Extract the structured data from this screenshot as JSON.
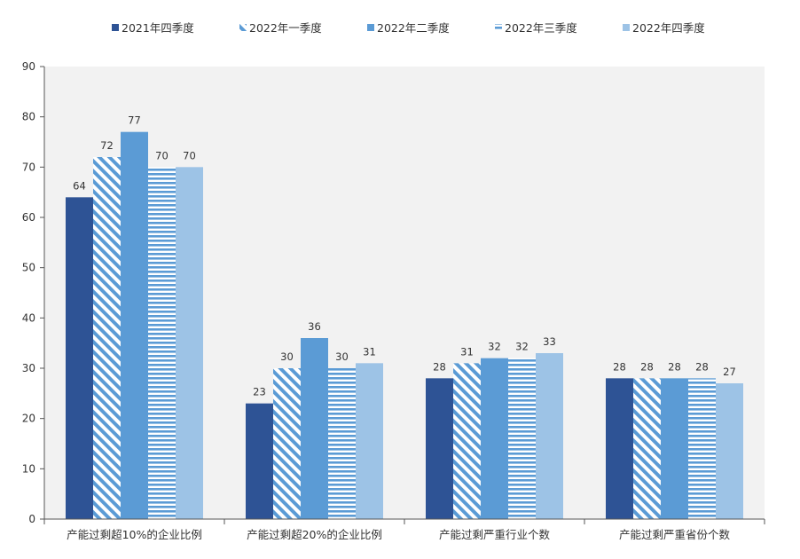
{
  "chart_data": {
    "type": "bar",
    "title": "",
    "xlabel": "",
    "ylabel": "",
    "ylim": [
      0,
      90
    ],
    "yticks": [
      0,
      10,
      20,
      30,
      40,
      50,
      60,
      70,
      80,
      90
    ],
    "grid": false,
    "legend_position": "top-center",
    "categories": [
      "产能过剩超10%的企业比例",
      "产能过剩超20%的企业比例",
      "产能过剩严重行业个数",
      "产能过剩严重省份个数"
    ],
    "series": [
      {
        "name": "2021年四季度",
        "values": [
          64,
          23,
          28,
          28
        ],
        "color": "#2E5395",
        "pattern": "solid"
      },
      {
        "name": "2022年一季度",
        "values": [
          72,
          30,
          31,
          28
        ],
        "color": "#5B9BD5",
        "pattern": "diagonal"
      },
      {
        "name": "2022年二季度",
        "values": [
          77,
          36,
          32,
          28
        ],
        "color": "#5B9BD5",
        "pattern": "solid"
      },
      {
        "name": "2022年三季度",
        "values": [
          70,
          30,
          32,
          28
        ],
        "color": "#5B9BD5",
        "pattern": "horizontal"
      },
      {
        "name": "2022年四季度",
        "values": [
          70,
          31,
          33,
          27
        ],
        "color": "#9DC3E6",
        "pattern": "solid"
      }
    ],
    "plot_background": "#F2F2F2"
  }
}
